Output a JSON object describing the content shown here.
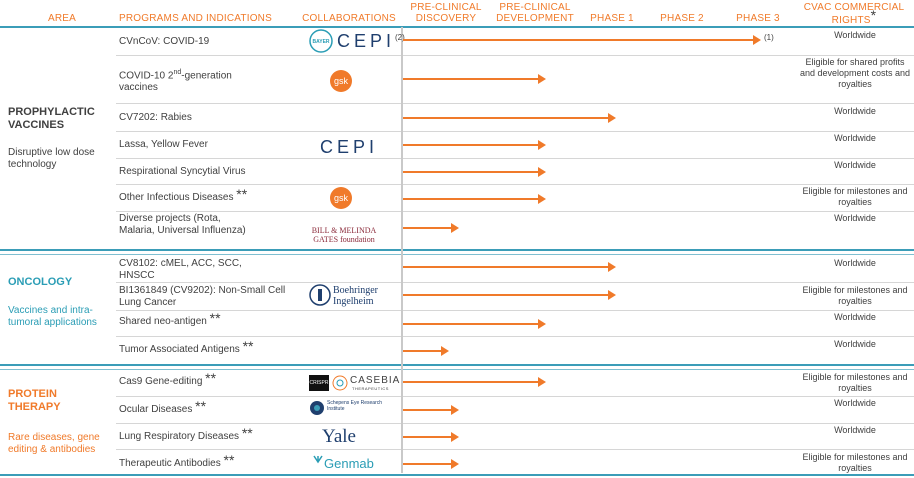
{
  "headers": {
    "area": "AREA",
    "programs": "PROGRAMS AND INDICATIONS",
    "collaborations": "COLLABORATIONS",
    "preclinical_discovery": "PRE-CLINICAL DISCOVERY",
    "preclinical_development": "PRE-CLINICAL DEVELOPMENT",
    "phase1": "PHASE 1",
    "phase2": "PHASE 2",
    "phase3": "PHASE 3",
    "rights": "CVAC COMMERCIAL RIGHTS",
    "rights_star": "*"
  },
  "colors": {
    "accent": "#f07a2a",
    "teal": "#3b9db8",
    "text": "#404040"
  },
  "areas": [
    {
      "title": "PROPHYLACTIC VACCINES",
      "subtitle": "Disruptive low dose technology",
      "color": "#404040"
    },
    {
      "title": "ONCOLOGY",
      "subtitle": "Vaccines and intra-tumoral applications",
      "color": "#2a9db5"
    },
    {
      "title": "PROTEIN THERAPY",
      "subtitle": "Rare diseases, gene editing & antibodies",
      "color": "#f07a2a"
    }
  ],
  "programs": [
    {
      "name": "CVnCoV: COVID-19",
      "stars": "",
      "rights": "Worldwide",
      "note": "(1)",
      "logo": "Bayer + CEPI",
      "logo_sup": "(2)",
      "stage": "Phase 3"
    },
    {
      "name": "COVID-10 2",
      "name_sup": "nd",
      "name_rest": "-generation vaccines",
      "stars": "",
      "rights": "Eligible for shared profits and development costs and royalties",
      "logo": "gsk",
      "stage": "Pre-clinical development"
    },
    {
      "name": "CV7202: Rabies",
      "stars": "",
      "rights": "Worldwide",
      "logo": "",
      "stage": "Phase 1"
    },
    {
      "name": "Lassa, Yellow Fever",
      "stars": "",
      "rights": "Worldwide",
      "logo": "CEPI",
      "stage": "Pre-clinical development"
    },
    {
      "name": "Respirational Syncytial Virus",
      "stars": "",
      "rights": "Worldwide",
      "logo": "",
      "stage": "Pre-clinical development"
    },
    {
      "name": "Other Infectious Diseases",
      "stars": "**",
      "rights": "Eligible for milestones and royalties",
      "logo": "gsk",
      "stage": "Pre-clinical development"
    },
    {
      "name": "Diverse projects (Rota, Malaria, Universal Influenza)",
      "stars": "",
      "rights": "Worldwide",
      "logo": "Bill & Melinda Gates foundation",
      "stage": "Pre-clinical discovery"
    },
    {
      "name": "CV8102: cMEL, ACC, SCC, HNSCC",
      "stars": "",
      "rights": "Worldwide",
      "logo": "",
      "stage": "Phase 1"
    },
    {
      "name": "BI1361849 (CV9202): Non-Small Cell Lung Cancer",
      "stars": "",
      "rights": "Eligible for milestones and royalties",
      "logo": "Boehringer Ingelheim",
      "stage": "Phase 1"
    },
    {
      "name": "Shared neo-antigen",
      "stars": "**",
      "rights": "Worldwide",
      "logo": "",
      "stage": "Pre-clinical development"
    },
    {
      "name": "Tumor Associated Antigens",
      "stars": "**",
      "rights": "Worldwide",
      "logo": "",
      "stage": "Pre-clinical discovery"
    },
    {
      "name": "Cas9 Gene-editing",
      "stars": "**",
      "rights": "Eligible for milestones and royalties",
      "logo": "CRISPR + CASEBIA THERAPEUTICS",
      "stage": "Pre-clinical development"
    },
    {
      "name": "Ocular Diseases",
      "stars": "**",
      "rights": "Worldwide",
      "logo": "Schepens Eye Research Institute",
      "stage": "Pre-clinical discovery"
    },
    {
      "name": "Lung Respiratory Diseases",
      "stars": "**",
      "rights": "Worldwide",
      "logo": "Yale",
      "stage": "Pre-clinical discovery"
    },
    {
      "name": "Therapeutic Antibodies",
      "stars": "**",
      "rights": "Eligible for milestones and royalties",
      "logo": "Genmab",
      "stage": "Pre-clinical discovery"
    }
  ],
  "logos": {
    "bayer": "BAYER",
    "cepi": "CEPI",
    "cepi_sup": "(2)",
    "gsk": "gsk",
    "gates_line1": "BILL & MELINDA",
    "gates_line2": "GATES foundation",
    "boehringer1": "Boehringer",
    "boehringer2": "Ingelheim",
    "crispr": "CRISPR",
    "casebia": "CASEBIA",
    "casebia_sub": "THERAPEUTICS",
    "schepens": "Schepens Eye Research Institute",
    "yale": "Yale",
    "genmab": "Genmab"
  }
}
